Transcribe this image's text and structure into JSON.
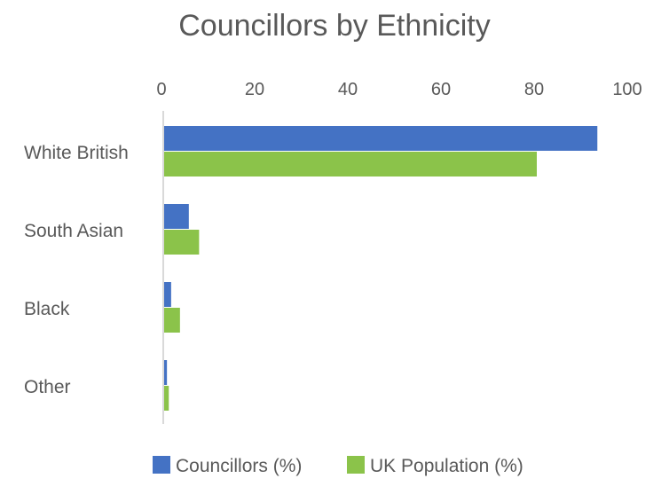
{
  "chart_data": {
    "type": "bar",
    "orientation": "horizontal",
    "title": "Councillors by Ethnicity",
    "categories": [
      "White British",
      "South Asian",
      "Black",
      "Other"
    ],
    "series": [
      {
        "name": "Councillors (%)",
        "values": [
          93,
          5.3,
          1.5,
          0.6
        ],
        "color": "#4472C4"
      },
      {
        "name": "UK Population (%)",
        "values": [
          80,
          7.5,
          3.4,
          1.0
        ],
        "color": "#8BC34A"
      }
    ],
    "xlim": [
      0,
      100
    ],
    "xticks": [
      "0",
      "20",
      "40",
      "60",
      "80",
      "100"
    ],
    "xaxis_position": "top",
    "grid": false,
    "legend_position": "bottom"
  }
}
